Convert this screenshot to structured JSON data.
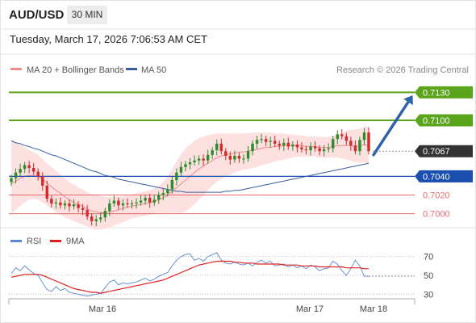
{
  "header": {
    "symbol": "AUD/USD",
    "interval": "30 MIN",
    "timestamp": "Tuesday, March 17, 2026 7:06:53 AM CET"
  },
  "colors": {
    "resistance": "#5aa51c",
    "support": "#1a4fb0",
    "minor_support": "#e86a6a",
    "last_price_box": "#333333",
    "ma20": "#f08a8a",
    "bollinger_fill": "#fde0e0",
    "ma50": "#3a5fa0",
    "up_candle": "#2e8b2e",
    "down_candle": "#d42a2a",
    "arrow": "#2f62a8",
    "rsi": "#5a88d6",
    "rsi_ma": "#e02020"
  },
  "chart_data": [
    {
      "type": "candlestick",
      "title": "AUD/USD",
      "legend": [
        {
          "name": "MA 20 + Bollinger Bands",
          "color": "#f08a8a"
        },
        {
          "name": "MA 50",
          "color": "#3a5fa0"
        }
      ],
      "credit": "Research © 2026 Trading Central",
      "x_tick_labels": [
        "Mar 16",
        "Mar 17",
        "Mar 18"
      ],
      "ylim": [
        0.6985,
        0.7145
      ],
      "last_price": 0.7067,
      "levels": [
        {
          "label": "0.7130",
          "value": 0.713,
          "kind": "resistance"
        },
        {
          "label": "0.7100",
          "value": 0.71,
          "kind": "resistance"
        },
        {
          "label": "0.7067",
          "value": 0.7067,
          "kind": "last"
        },
        {
          "label": "0.7040",
          "value": 0.704,
          "kind": "pivot"
        },
        {
          "label": "0.7020",
          "value": 0.702,
          "kind": "support"
        },
        {
          "label": "0.7000",
          "value": 0.7,
          "kind": "support"
        }
      ],
      "forecast_arrow": {
        "from": 0.7063,
        "to": 0.713
      },
      "closes": [
        0.7038,
        0.7044,
        0.7048,
        0.7052,
        0.7049,
        0.7045,
        0.704,
        0.703,
        0.7016,
        0.7011,
        0.7012,
        0.7009,
        0.7011,
        0.7008,
        0.701,
        0.7006,
        0.7004,
        0.6997,
        0.6992,
        0.6994,
        0.6996,
        0.7003,
        0.7011,
        0.7014,
        0.7009,
        0.7011,
        0.701,
        0.7011,
        0.7012,
        0.7014,
        0.7017,
        0.7012,
        0.7015,
        0.702,
        0.7022,
        0.7026,
        0.7036,
        0.7044,
        0.705,
        0.7053,
        0.7055,
        0.7057,
        0.7059,
        0.7057,
        0.7063,
        0.7068,
        0.7075,
        0.7067,
        0.7062,
        0.7058,
        0.7062,
        0.7059,
        0.7059,
        0.7067,
        0.7075,
        0.7079,
        0.708,
        0.7077,
        0.7078,
        0.7075,
        0.7073,
        0.7076,
        0.7072,
        0.7074,
        0.7071,
        0.7069,
        0.7068,
        0.7072,
        0.707,
        0.7067,
        0.7069,
        0.707,
        0.708,
        0.7085,
        0.7083,
        0.7078,
        0.7073,
        0.7067,
        0.7079,
        0.7087,
        0.7067
      ],
      "ma20": [
        0.7032,
        0.7035,
        0.7038,
        0.704,
        0.7041,
        0.7041,
        0.704,
        0.7037,
        0.7033,
        0.7029,
        0.7025,
        0.7022,
        0.7018,
        0.7015,
        0.7012,
        0.701,
        0.7008,
        0.7005,
        0.7003,
        0.7002,
        0.7001,
        0.7001,
        0.7002,
        0.7003,
        0.7004,
        0.7006,
        0.7007,
        0.7008,
        0.7009,
        0.701,
        0.7011,
        0.7012,
        0.7013,
        0.7015,
        0.7017,
        0.702,
        0.7024,
        0.7028,
        0.7032,
        0.7036,
        0.704,
        0.7044,
        0.7048,
        0.7051,
        0.7054,
        0.7057,
        0.706,
        0.7062,
        0.7063,
        0.7064,
        0.7065,
        0.7066,
        0.7066,
        0.7067,
        0.7068,
        0.7069,
        0.707,
        0.7071,
        0.7071,
        0.7072,
        0.7072,
        0.7073,
        0.7073,
        0.7073,
        0.7073,
        0.7073,
        0.7072,
        0.7072,
        0.7072,
        0.7071,
        0.7071,
        0.7071,
        0.7072,
        0.7073,
        0.7073,
        0.7073,
        0.7073,
        0.7072,
        0.7073,
        0.7074,
        0.7073
      ],
      "bb_upper": [
        0.708,
        0.7077,
        0.7074,
        0.7071,
        0.7068,
        0.7066,
        0.7063,
        0.7058,
        0.7054,
        0.705,
        0.7046,
        0.7042,
        0.7038,
        0.7034,
        0.7031,
        0.7028,
        0.7026,
        0.7023,
        0.7021,
        0.702,
        0.7019,
        0.7018,
        0.7018,
        0.7018,
        0.7018,
        0.7019,
        0.702,
        0.7021,
        0.7022,
        0.7023,
        0.7024,
        0.7025,
        0.7027,
        0.703,
        0.7034,
        0.704,
        0.7048,
        0.7056,
        0.7064,
        0.707,
        0.7074,
        0.7078,
        0.7081,
        0.7083,
        0.7084,
        0.7085,
        0.7086,
        0.7086,
        0.7086,
        0.7086,
        0.7086,
        0.7086,
        0.7086,
        0.7086,
        0.7087,
        0.7087,
        0.7087,
        0.7087,
        0.7087,
        0.7086,
        0.7086,
        0.7086,
        0.7085,
        0.7085,
        0.7084,
        0.7084,
        0.7083,
        0.7083,
        0.7083,
        0.7082,
        0.7082,
        0.7082,
        0.7083,
        0.7085,
        0.7087,
        0.7089,
        0.709,
        0.709,
        0.7091,
        0.7093,
        0.7094
      ],
      "bb_lower": [
        0.7001,
        0.7004,
        0.7008,
        0.7012,
        0.7015,
        0.7016,
        0.7015,
        0.7012,
        0.7009,
        0.7006,
        0.7002,
        0.6999,
        0.6996,
        0.6994,
        0.6992,
        0.699,
        0.6988,
        0.6986,
        0.6984,
        0.6983,
        0.6983,
        0.6984,
        0.6985,
        0.6987,
        0.6989,
        0.6991,
        0.6993,
        0.6995,
        0.6996,
        0.6997,
        0.6998,
        0.6999,
        0.7,
        0.7001,
        0.7001,
        0.7001,
        0.7001,
        0.7001,
        0.7001,
        0.7002,
        0.7006,
        0.701,
        0.7015,
        0.702,
        0.7025,
        0.703,
        0.7034,
        0.7037,
        0.704,
        0.7042,
        0.7044,
        0.7046,
        0.7047,
        0.7048,
        0.7049,
        0.705,
        0.7052,
        0.7053,
        0.7054,
        0.7056,
        0.7057,
        0.7058,
        0.7059,
        0.706,
        0.7061,
        0.7061,
        0.7061,
        0.7061,
        0.7061,
        0.706,
        0.706,
        0.706,
        0.706,
        0.706,
        0.7059,
        0.7058,
        0.7057,
        0.7055,
        0.7055,
        0.7055,
        0.7053
      ],
      "ma50": [
        0.7078,
        0.7076,
        0.7075,
        0.7073,
        0.7072,
        0.707,
        0.7069,
        0.7067,
        0.7065,
        0.7063,
        0.7062,
        0.706,
        0.7058,
        0.7056,
        0.7054,
        0.7052,
        0.705,
        0.7048,
        0.7046,
        0.7045,
        0.7043,
        0.7041,
        0.704,
        0.7039,
        0.7037,
        0.7036,
        0.7035,
        0.7034,
        0.7033,
        0.7032,
        0.7031,
        0.703,
        0.7029,
        0.7028,
        0.7027,
        0.7026,
        0.7025,
        0.7024,
        0.7024,
        0.7023,
        0.7023,
        0.7023,
        0.7023,
        0.7023,
        0.7023,
        0.7023,
        0.7023,
        0.7023,
        0.7024,
        0.7024,
        0.7025,
        0.7025,
        0.7026,
        0.7027,
        0.7028,
        0.7029,
        0.703,
        0.7031,
        0.7032,
        0.7033,
        0.7034,
        0.7035,
        0.7036,
        0.7037,
        0.7038,
        0.7039,
        0.704,
        0.7041,
        0.7042,
        0.7043,
        0.7044,
        0.7045,
        0.7046,
        0.7047,
        0.7048,
        0.7049,
        0.705,
        0.7051,
        0.7052,
        0.7053,
        0.7054
      ]
    },
    {
      "type": "line",
      "title": "RSI",
      "legend": [
        {
          "name": "RSI",
          "color": "#5a88d6"
        },
        {
          "name": "9MA",
          "color": "#e02020"
        }
      ],
      "ylim": [
        20,
        80
      ],
      "y_ticks": [
        "70",
        "50",
        "30"
      ],
      "series": [
        {
          "name": "RSI",
          "values": [
            52,
            58,
            55,
            60,
            56,
            52,
            50,
            42,
            35,
            33,
            38,
            34,
            36,
            32,
            31,
            30,
            29,
            28,
            29,
            30,
            31,
            37,
            43,
            45,
            40,
            42,
            41,
            42,
            43,
            45,
            47,
            44,
            46,
            49,
            51,
            53,
            60,
            66,
            70,
            72,
            73,
            66,
            68,
            65,
            70,
            72,
            74,
            66,
            63,
            62,
            64,
            62,
            61,
            63,
            60,
            64,
            66,
            63,
            65,
            60,
            61,
            62,
            59,
            61,
            58,
            60,
            57,
            61,
            59,
            55,
            57,
            58,
            65,
            62,
            55,
            50,
            57,
            66,
            60,
            49,
            49
          ]
        },
        {
          "name": "9MA",
          "values": [
            48,
            49,
            50,
            51,
            51,
            51,
            51,
            50,
            48,
            46,
            44,
            42,
            40,
            38,
            36,
            35,
            34,
            33,
            32,
            32,
            31,
            32,
            33,
            34,
            35,
            36,
            37,
            38,
            39,
            40,
            41,
            42,
            43,
            44,
            45,
            47,
            49,
            51,
            53,
            55,
            57,
            59,
            61,
            62,
            63,
            64,
            65,
            65,
            65,
            65,
            64,
            64,
            63,
            63,
            63,
            62,
            62,
            62,
            62,
            62,
            62,
            61,
            61,
            61,
            61,
            60,
            60,
            60,
            60,
            59,
            59,
            59,
            59,
            59,
            59,
            58,
            58,
            58,
            58,
            57,
            57
          ]
        }
      ]
    }
  ]
}
